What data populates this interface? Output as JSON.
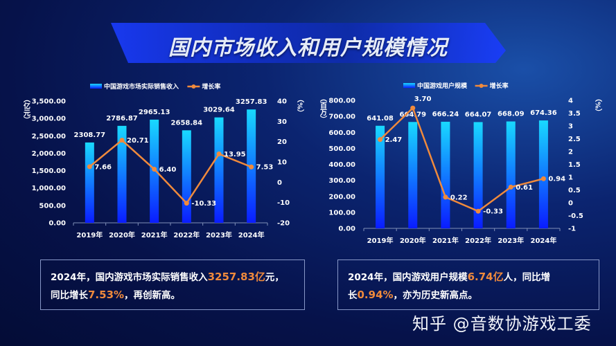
{
  "title": "国内市场收入和用户规模情况",
  "colors": {
    "bar_top": "#19d9ff",
    "bar_bottom": "#0a1cff",
    "line": "#f08a3c",
    "highlight": "#f08a3c",
    "banner": "#1a3cff"
  },
  "chart_data": [
    {
      "type": "bar+line",
      "legend": {
        "placement": "top",
        "bar_label": "中国游戏市场实际销售收入",
        "line_label": "增长率"
      },
      "categories": [
        "2019年",
        "2020年",
        "2021年",
        "2022年",
        "2023年",
        "2024年"
      ],
      "series": [
        {
          "name": "中国游戏市场实际销售收入",
          "type": "bar",
          "axis": "left",
          "values": [
            2308.77,
            2786.87,
            2965.13,
            2658.84,
            3029.64,
            3257.83
          ],
          "labels": [
            "2308.77",
            "2786.87",
            "2965.13",
            "2658.84",
            "3029.64",
            "3257.83"
          ]
        },
        {
          "name": "增长率",
          "type": "line",
          "axis": "right",
          "values": [
            7.66,
            20.71,
            6.4,
            -10.33,
            13.95,
            7.53
          ],
          "labels": [
            "7.66",
            "20.71",
            "6.40",
            "-10.33",
            "13.95",
            "7.53"
          ]
        }
      ],
      "ylabel": "（亿元）",
      "y2label": "（%）",
      "ylim": [
        0,
        3500
      ],
      "y2lim": [
        -20,
        40
      ],
      "yticks": [
        "0.00",
        "500.00",
        "1,000.00",
        "1,500.00",
        "2,000.00",
        "2,500.00",
        "3,000.00",
        "3,500.00"
      ],
      "y2ticks": [
        "-20",
        "-10",
        "0",
        "10",
        "20",
        "30",
        "40"
      ],
      "grid": false
    },
    {
      "type": "bar+line",
      "legend": {
        "placement": "top",
        "bar_label": "中国游戏用户规模",
        "line_label": "增长率"
      },
      "categories": [
        "2019年",
        "2020年",
        "2021年",
        "2022年",
        "2023年",
        "2024年"
      ],
      "series": [
        {
          "name": "中国游戏用户规模",
          "type": "bar",
          "axis": "left",
          "values": [
            641.08,
            664.79,
            666.24,
            664.07,
            668.09,
            674.36
          ],
          "labels": [
            "641.08",
            "664.79",
            "666.24",
            "664.07",
            "668.09",
            "674.36"
          ]
        },
        {
          "name": "增长率",
          "type": "line",
          "axis": "right",
          "values": [
            2.47,
            3.7,
            0.22,
            -0.33,
            0.61,
            0.94
          ],
          "labels": [
            "2.47",
            "3.70",
            "0.22",
            "-0.33",
            "0.61",
            "0.94"
          ]
        }
      ],
      "ylabel": "（百万）",
      "y2label": "（%）",
      "ylim": [
        0,
        800
      ],
      "y2lim": [
        -1,
        4
      ],
      "yticks": [
        "0.00",
        "100.00",
        "200.00",
        "300.00",
        "400.00",
        "500.00",
        "600.00",
        "700.00",
        "800.00"
      ],
      "y2ticks": [
        "-1",
        "-0.5",
        "0",
        "0.5",
        "1",
        "1.5",
        "2",
        "2.5",
        "3",
        "3.5",
        "4"
      ],
      "grid": false
    }
  ],
  "summaries": [
    [
      {
        "text": "2024年，国内游戏市场实际销售收入",
        "hl": false
      },
      {
        "text": "3257.83亿",
        "hl": true
      },
      {
        "text": "元，",
        "hl": false
      },
      {
        "text": "\n同比增长",
        "hl": false
      },
      {
        "text": "7.53%",
        "hl": true
      },
      {
        "text": "，再创新高。",
        "hl": false
      }
    ],
    [
      {
        "text": "2024年，国内游戏用户规模",
        "hl": false
      },
      {
        "text": "6.74亿",
        "hl": true
      },
      {
        "text": "人，同比增",
        "hl": false
      },
      {
        "text": "\n长",
        "hl": false
      },
      {
        "text": "0.94%",
        "hl": true
      },
      {
        "text": "，亦为历史新高点。",
        "hl": false
      }
    ]
  ],
  "watermark": "知乎 @音数协游戏工委"
}
